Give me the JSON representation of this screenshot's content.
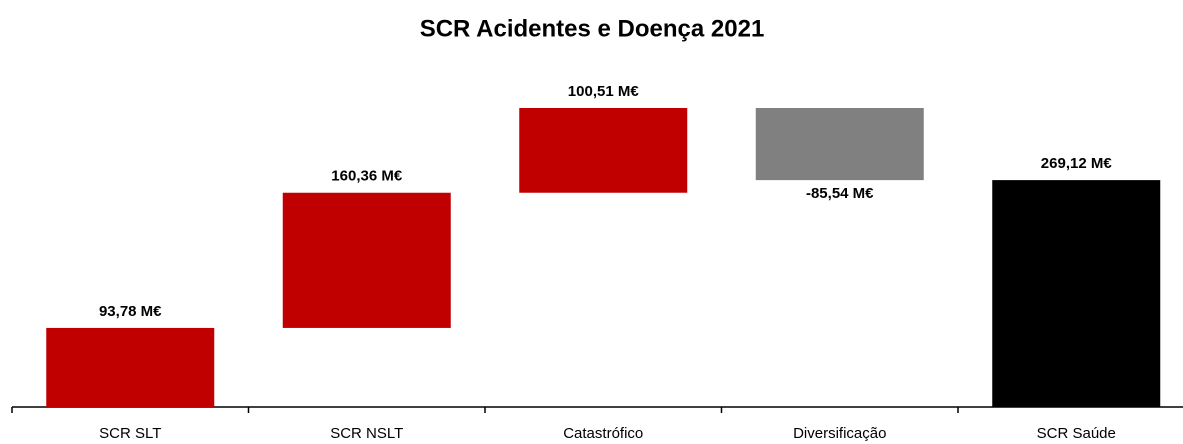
{
  "chart_data": {
    "type": "waterfall",
    "title": "SCR Acidentes e Doença 2021",
    "categories": [
      "SCR SLT",
      "SCR NSLT",
      "Catastrófico",
      "Diversificação",
      "SCR Saúde"
    ],
    "values": [
      93.78,
      160.36,
      100.51,
      -85.54,
      269.12
    ],
    "value_labels": [
      "93,78 M€",
      "160,36 M€",
      "100,51 M€",
      "-85,54 M€",
      "269,12 M€"
    ],
    "totals": [
      false,
      false,
      false,
      false,
      true
    ],
    "colors": {
      "increase": "#c00000",
      "decrease": "#808080",
      "total": "#000000"
    },
    "grid": false
  }
}
